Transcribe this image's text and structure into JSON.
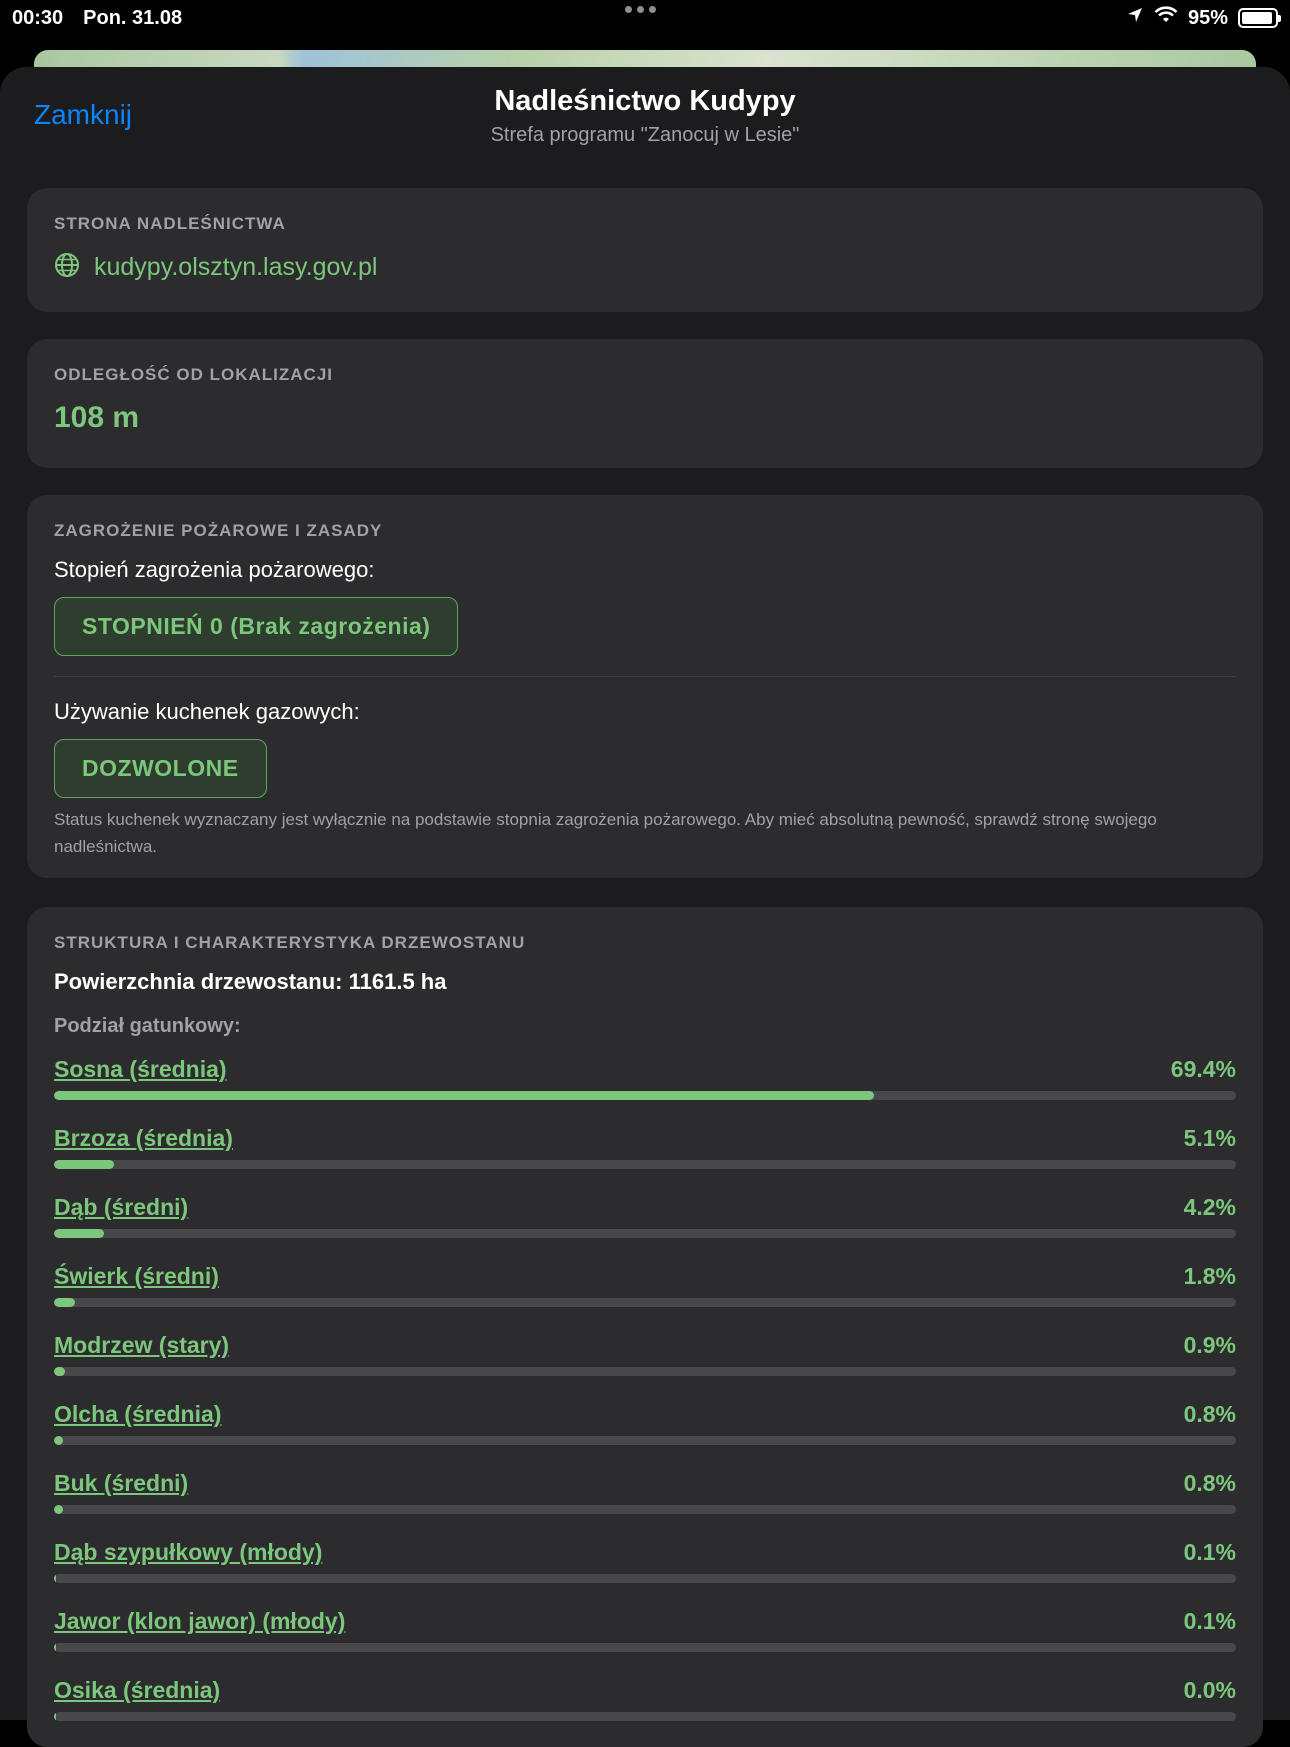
{
  "status_bar": {
    "time": "00:30",
    "date": "Pon. 31.08",
    "battery": "95%",
    "battery_level": 0.95
  },
  "sheet": {
    "close_label": "Zamknij",
    "title": "Nadleśnictwo Kudypy",
    "subtitle": "Strefa programu \"Zanocuj w Lesie\""
  },
  "website": {
    "header": "STRONA NADLEŚNICTWA",
    "url": "kudypy.olsztyn.lasy.gov.pl"
  },
  "distance": {
    "header": "ODLEGŁOŚĆ OD LOKALIZACJI",
    "value": "108 m"
  },
  "fire": {
    "header": "ZAGROŻENIE POŻAROWE I ZASADY",
    "level_label": "Stopień zagrożenia pożarowego:",
    "level_value": "STOPNIEŃ 0 (Brak zagrożenia)",
    "stove_label": "Używanie kuchenek gazowych:",
    "stove_value": "DOZWOLONE",
    "note": "Status kuchenek wyznaczany jest wyłącznie na podstawie stopnia zagrożenia pożarowego. Aby mieć absolutną pewność, sprawdź stronę swojego nadleśnictwa."
  },
  "stand": {
    "header": "STRUKTURA I CHARAKTERYSTYKA DRZEWOSTANU",
    "area": "Powierzchnia drzewostanu: 1161.5 ha",
    "species_heading": "Podział gatunkowy:",
    "species": [
      {
        "name": "Sosna (średnia)",
        "percent": "69.4%",
        "fraction": 0.694
      },
      {
        "name": "Brzoza (średnia)",
        "percent": "5.1%",
        "fraction": 0.051
      },
      {
        "name": "Dąb (średni)",
        "percent": "4.2%",
        "fraction": 0.042
      },
      {
        "name": "Świerk (średni)",
        "percent": "1.8%",
        "fraction": 0.018
      },
      {
        "name": "Modrzew (stary)",
        "percent": "0.9%",
        "fraction": 0.009
      },
      {
        "name": "Olcha (średnia)",
        "percent": "0.8%",
        "fraction": 0.008
      },
      {
        "name": "Buk (średni)",
        "percent": "0.8%",
        "fraction": 0.008
      },
      {
        "name": "Dąb szypułkowy (młody)",
        "percent": "0.1%",
        "fraction": 0.001
      },
      {
        "name": "Jawor (klon jawor) (młody)",
        "percent": "0.1%",
        "fraction": 0.001
      },
      {
        "name": "Osika (średnia)",
        "percent": "0.0%",
        "fraction": 0.0
      }
    ]
  },
  "colors": {
    "accent_green": "#7cc77c",
    "link_blue": "#0a84ff",
    "card_bg": "#2c2c2e",
    "sheet_bg": "#1c1c1e"
  }
}
